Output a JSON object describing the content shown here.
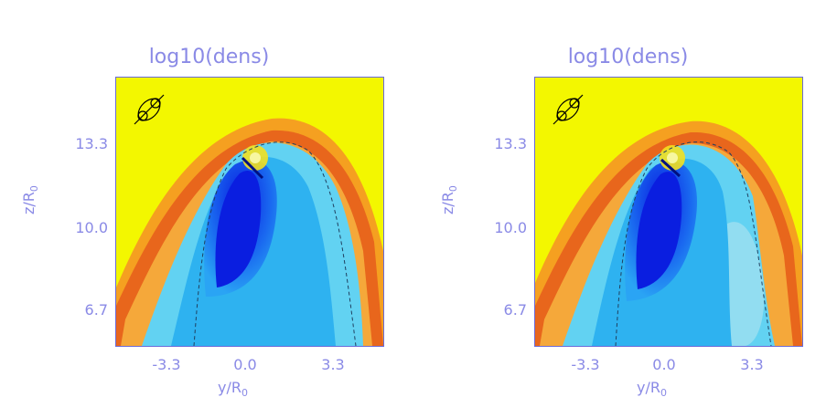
{
  "panels": [
    {
      "title": "log10(dens)",
      "yticks": [
        "13.3",
        "10.0",
        "6.7"
      ],
      "xticks": [
        "-3.3",
        "0.0",
        "3.3"
      ],
      "ylabel": "z/R",
      "ylabel_sub": "0",
      "xlabel": "y/R",
      "xlabel_sub": "0"
    },
    {
      "title": "log10(dens)",
      "yticks": [
        "13.3",
        "10.0",
        "6.7"
      ],
      "xticks": [
        "-3.3",
        "0.0",
        "3.3"
      ],
      "ylabel": "z/R",
      "ylabel_sub": "0",
      "xlabel": "y/R",
      "xlabel_sub": "0"
    }
  ],
  "colors": {
    "background_field": "#f3f700",
    "shock_outer": "#e8601a",
    "shock_inner": "#f5a020",
    "cavity_light": "#3ec4f4",
    "cavity_mid": "#1a8af0",
    "cavity_dark": "#0a1ee0",
    "axis_text": "#8a8ae6"
  }
}
